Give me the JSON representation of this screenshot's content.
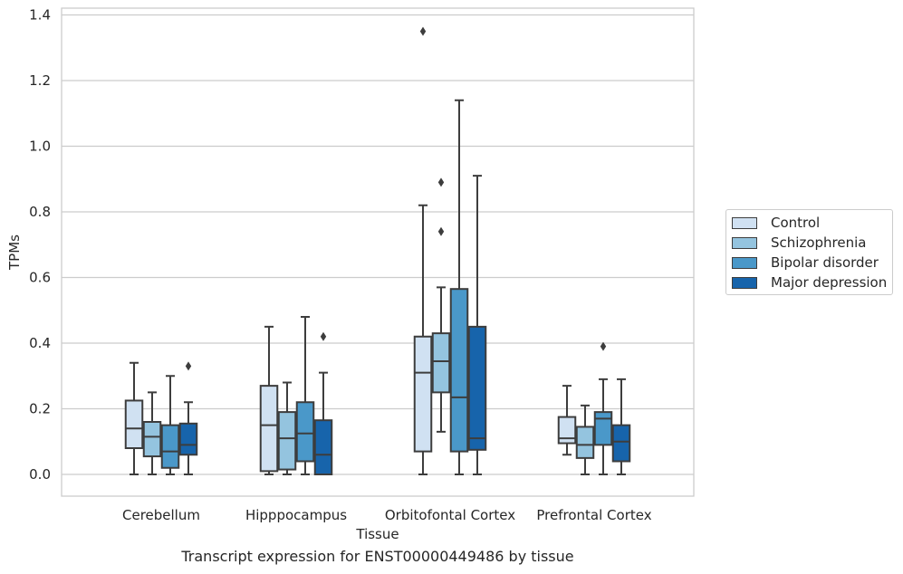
{
  "chart_data": {
    "type": "box",
    "title": "",
    "caption": "Transcript expression for ENST00000449486 by tissue",
    "xlabel": "Tissue",
    "ylabel": "TPMs",
    "ylim": [
      -0.065,
      1.42
    ],
    "yticks": [
      0.0,
      0.2,
      0.4,
      0.6,
      0.8,
      1.0,
      1.2,
      1.4
    ],
    "ytick_labels": [
      "0.0",
      "0.2",
      "0.4",
      "0.6",
      "0.8",
      "1.0",
      "1.2",
      "1.4"
    ],
    "grid": "horizontal",
    "legend_position": "outside-right",
    "categories": [
      "Cerebellum",
      "Hipppocampus",
      "Orbitofontal Cortex",
      "Prefrontal Cortex"
    ],
    "series": [
      {
        "name": "Control",
        "color": "#d0e1f2",
        "boxes": [
          {
            "whislo": 0.0,
            "q1": 0.08,
            "med": 0.14,
            "q3": 0.225,
            "whishi": 0.34,
            "fliers": []
          },
          {
            "whislo": 0.0,
            "q1": 0.01,
            "med": 0.15,
            "q3": 0.27,
            "whishi": 0.45,
            "fliers": []
          },
          {
            "whislo": 0.0,
            "q1": 0.07,
            "med": 0.31,
            "q3": 0.42,
            "whishi": 0.82,
            "fliers": [
              1.35
            ]
          },
          {
            "whislo": 0.06,
            "q1": 0.095,
            "med": 0.11,
            "q3": 0.175,
            "whishi": 0.27,
            "fliers": []
          }
        ]
      },
      {
        "name": "Schizophrenia",
        "color": "#94c4df",
        "boxes": [
          {
            "whislo": 0.0,
            "q1": 0.055,
            "med": 0.115,
            "q3": 0.16,
            "whishi": 0.25,
            "fliers": []
          },
          {
            "whislo": 0.0,
            "q1": 0.015,
            "med": 0.11,
            "q3": 0.19,
            "whishi": 0.28,
            "fliers": []
          },
          {
            "whislo": 0.13,
            "q1": 0.25,
            "med": 0.345,
            "q3": 0.43,
            "whishi": 0.57,
            "fliers": [
              0.74,
              0.89
            ]
          },
          {
            "whislo": 0.0,
            "q1": 0.05,
            "med": 0.09,
            "q3": 0.145,
            "whishi": 0.21,
            "fliers": []
          }
        ]
      },
      {
        "name": "Bipolar disorder",
        "color": "#4a98c9",
        "boxes": [
          {
            "whislo": 0.0,
            "q1": 0.02,
            "med": 0.07,
            "q3": 0.15,
            "whishi": 0.3,
            "fliers": []
          },
          {
            "whislo": 0.0,
            "q1": 0.04,
            "med": 0.125,
            "q3": 0.22,
            "whishi": 0.48,
            "fliers": []
          },
          {
            "whislo": 0.0,
            "q1": 0.07,
            "med": 0.235,
            "q3": 0.565,
            "whishi": 1.14,
            "fliers": []
          },
          {
            "whislo": 0.0,
            "q1": 0.09,
            "med": 0.17,
            "q3": 0.19,
            "whishi": 0.29,
            "fliers": [
              0.39
            ]
          }
        ]
      },
      {
        "name": "Major depression",
        "color": "#1764ab",
        "boxes": [
          {
            "whislo": 0.0,
            "q1": 0.06,
            "med": 0.09,
            "q3": 0.155,
            "whishi": 0.22,
            "fliers": [
              0.33
            ]
          },
          {
            "whislo": 0.0,
            "q1": 0.0,
            "med": 0.06,
            "q3": 0.165,
            "whishi": 0.31,
            "fliers": [
              0.42
            ]
          },
          {
            "whislo": 0.0,
            "q1": 0.075,
            "med": 0.11,
            "q3": 0.45,
            "whishi": 0.91,
            "fliers": []
          },
          {
            "whislo": 0.0,
            "q1": 0.04,
            "med": 0.1,
            "q3": 0.15,
            "whishi": 0.29,
            "fliers": []
          }
        ]
      }
    ]
  }
}
